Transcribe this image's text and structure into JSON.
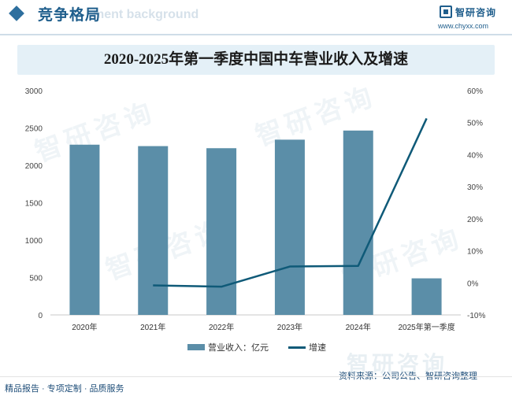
{
  "header": {
    "section_title": "竞争格局",
    "section_ghost": "ment background",
    "brand_name": "智研咨询",
    "brand_url": "www.chyxx.com"
  },
  "watermark_text": "智研咨询",
  "chart_data": {
    "type": "bar",
    "title": "2020-2025年第一季度中国中车营业收入及增速",
    "categories": [
      "2020年",
      "2021年",
      "2022年",
      "2023年",
      "2024年",
      "2025年第一季度"
    ],
    "y_left": {
      "ylim": [
        0,
        3000
      ],
      "ticks": [
        "0",
        "500",
        "1000",
        "1500",
        "2000",
        "2500",
        "3000"
      ]
    },
    "y_right": {
      "ylim": [
        -10,
        60
      ],
      "ticks": [
        "-10%",
        "0%",
        "10%",
        "20%",
        "30%",
        "40%",
        "50%",
        "60%"
      ]
    },
    "series": [
      {
        "name": "营业收入：亿元",
        "kind": "bar",
        "axis": "left",
        "color": "#5b8ea8",
        "values": [
          2276,
          2257,
          2229,
          2343,
          2465,
          489
        ]
      },
      {
        "name": "增速",
        "kind": "line",
        "axis": "right",
        "color": "#0f5a78",
        "values": [
          null,
          -0.8,
          -1.2,
          5.1,
          5.3,
          51.3
        ]
      }
    ],
    "grid": false,
    "legend_position": "bottom"
  },
  "footer": {
    "left_text": "精品报告 · 专项定制 · 品质服务",
    "source": "资料来源：公司公告、智研咨询整理"
  }
}
